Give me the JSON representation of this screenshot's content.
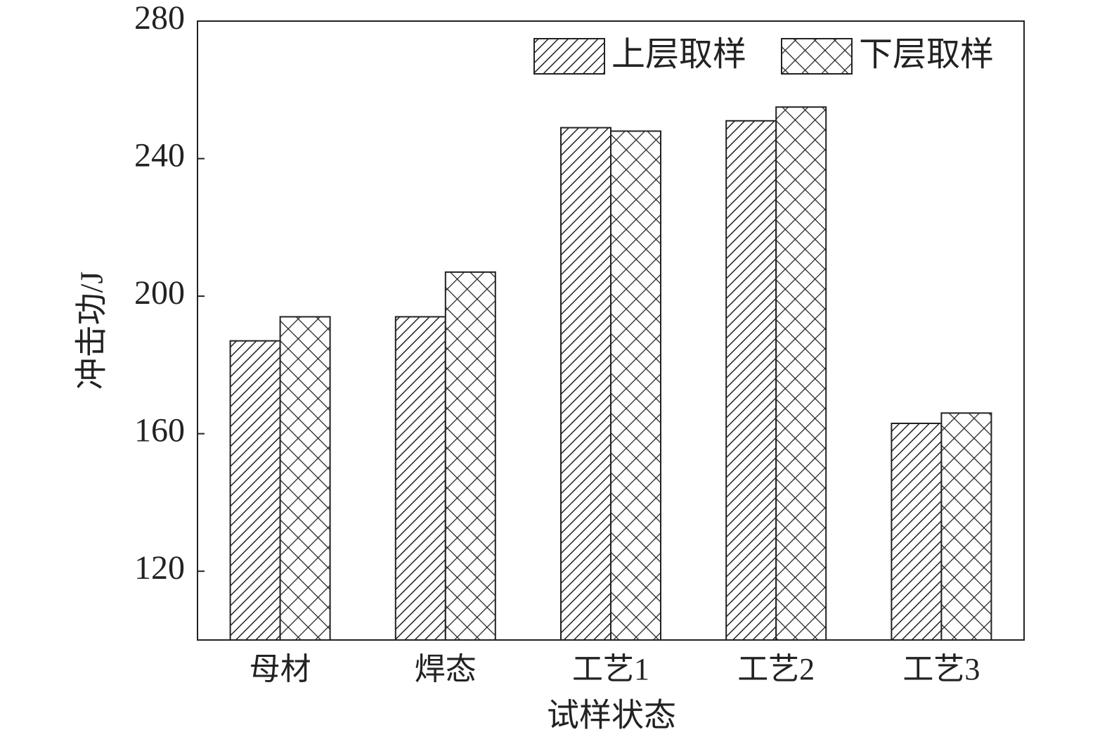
{
  "chart_data": {
    "type": "bar",
    "x_label": "试样状态",
    "y_label": "冲击功/J",
    "categories": [
      "母材",
      "焊态",
      "工艺1",
      "工艺2",
      "工艺3"
    ],
    "series": [
      {
        "name": "上层取样",
        "color": "#000000",
        "pattern": "diagonal",
        "values": [
          187,
          194,
          249,
          251,
          163
        ]
      },
      {
        "name": "下层取样",
        "color": "#000000",
        "pattern": "crosshatch",
        "values": [
          194,
          207,
          248,
          255,
          166
        ]
      }
    ],
    "ylim": [
      100,
      280
    ],
    "yticks": [
      120,
      160,
      200,
      240,
      280
    ],
    "grid": false,
    "legend": "upper right"
  }
}
